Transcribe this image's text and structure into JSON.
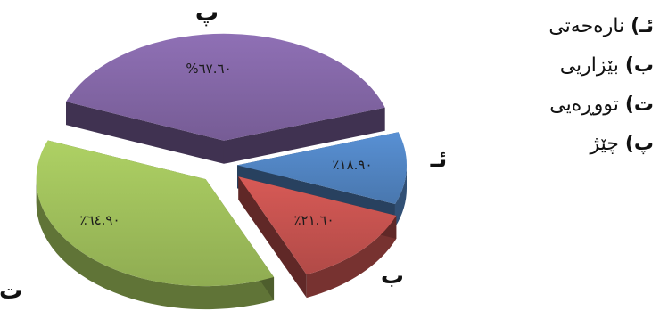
{
  "chart_data": {
    "type": "pie",
    "title": "",
    "slices": [
      {
        "key": "a",
        "label": "ئـ",
        "value_label": "٪١٨.٩٠",
        "value": 18.9,
        "color": "#4f81bd"
      },
      {
        "key": "b",
        "label": "ب",
        "value_label": "٪٢١.٦٠",
        "value": 21.6,
        "color": "#c0504d"
      },
      {
        "key": "t",
        "label": "ت",
        "value_label": "٪٦٤.٩٠",
        "value": 64.9,
        "color": "#9bbb59"
      },
      {
        "key": "p",
        "label": "پ",
        "value_label": "%٦٧.٦٠",
        "value": 67.6,
        "color": "#8064a2"
      }
    ],
    "legend_placement": "right",
    "legend": [
      {
        "letter": "ئـ)",
        "text": "نارەحەتی"
      },
      {
        "letter": "ب)",
        "text": "بێزاریی"
      },
      {
        "letter": "ت)",
        "text": "تووڕەیی"
      },
      {
        "letter": "پ)",
        "text": "چێژ"
      }
    ]
  }
}
